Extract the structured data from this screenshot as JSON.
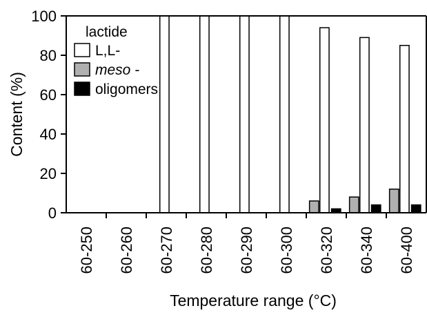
{
  "chart_data": {
    "type": "bar",
    "xlabel": "Temperature range (°C)",
    "ylabel": "Content (%)",
    "ylim": [
      0,
      100
    ],
    "yticks": [
      "0",
      "20",
      "40",
      "60",
      "80",
      "100"
    ],
    "categories": [
      "60-250",
      "60-260",
      "60-270",
      "60-280",
      "60-290",
      "60-300",
      "60-320",
      "60-340",
      "60-400"
    ],
    "legend": {
      "title": "lactide",
      "placement": "top-left"
    },
    "series": [
      {
        "name": "L,L-",
        "color": "#ffffff",
        "values": [
          null,
          null,
          100,
          100,
          100,
          100,
          94,
          89,
          85
        ]
      },
      {
        "name": "meso -",
        "color": "#b0b0b0",
        "values": [
          null,
          null,
          null,
          null,
          null,
          null,
          6,
          8,
          12
        ]
      },
      {
        "name": "oligomers",
        "color": "#000000",
        "values": [
          null,
          null,
          null,
          null,
          null,
          null,
          2,
          4,
          4
        ]
      }
    ],
    "grid": false
  }
}
